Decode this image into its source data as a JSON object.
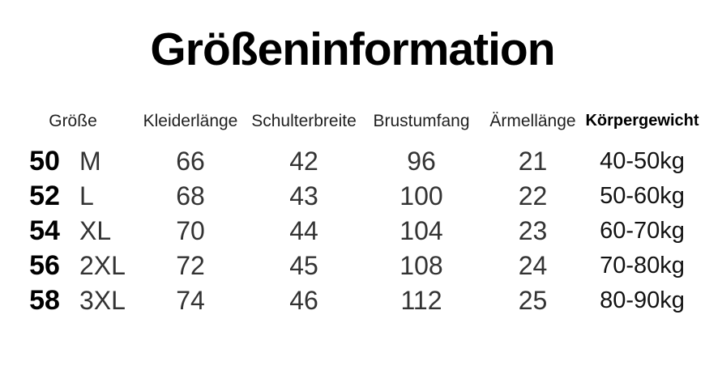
{
  "title": "Größeninformation",
  "table": {
    "headers": [
      "Größe",
      "Kleiderlänge",
      "Schulterbreite",
      "Brustumfang",
      "Ärmellänge",
      "Körpergewicht"
    ],
    "rows": [
      [
        "50",
        "M",
        "66",
        "42",
        "96",
        "21",
        "40-50kg"
      ],
      [
        "52",
        "L",
        "68",
        "43",
        "100",
        "22",
        "50-60kg"
      ],
      [
        "54",
        "XL",
        "70",
        "44",
        "104",
        "23",
        "60-70kg"
      ],
      [
        "56",
        "2XL",
        "72",
        "45",
        "108",
        "24",
        "70-80kg"
      ],
      [
        "58",
        "3XL",
        "74",
        "46",
        "112",
        "25",
        "80-90kg"
      ]
    ]
  },
  "colors": {
    "background": "#ffffff",
    "text_primary": "#000000",
    "text_secondary": "#333333"
  }
}
